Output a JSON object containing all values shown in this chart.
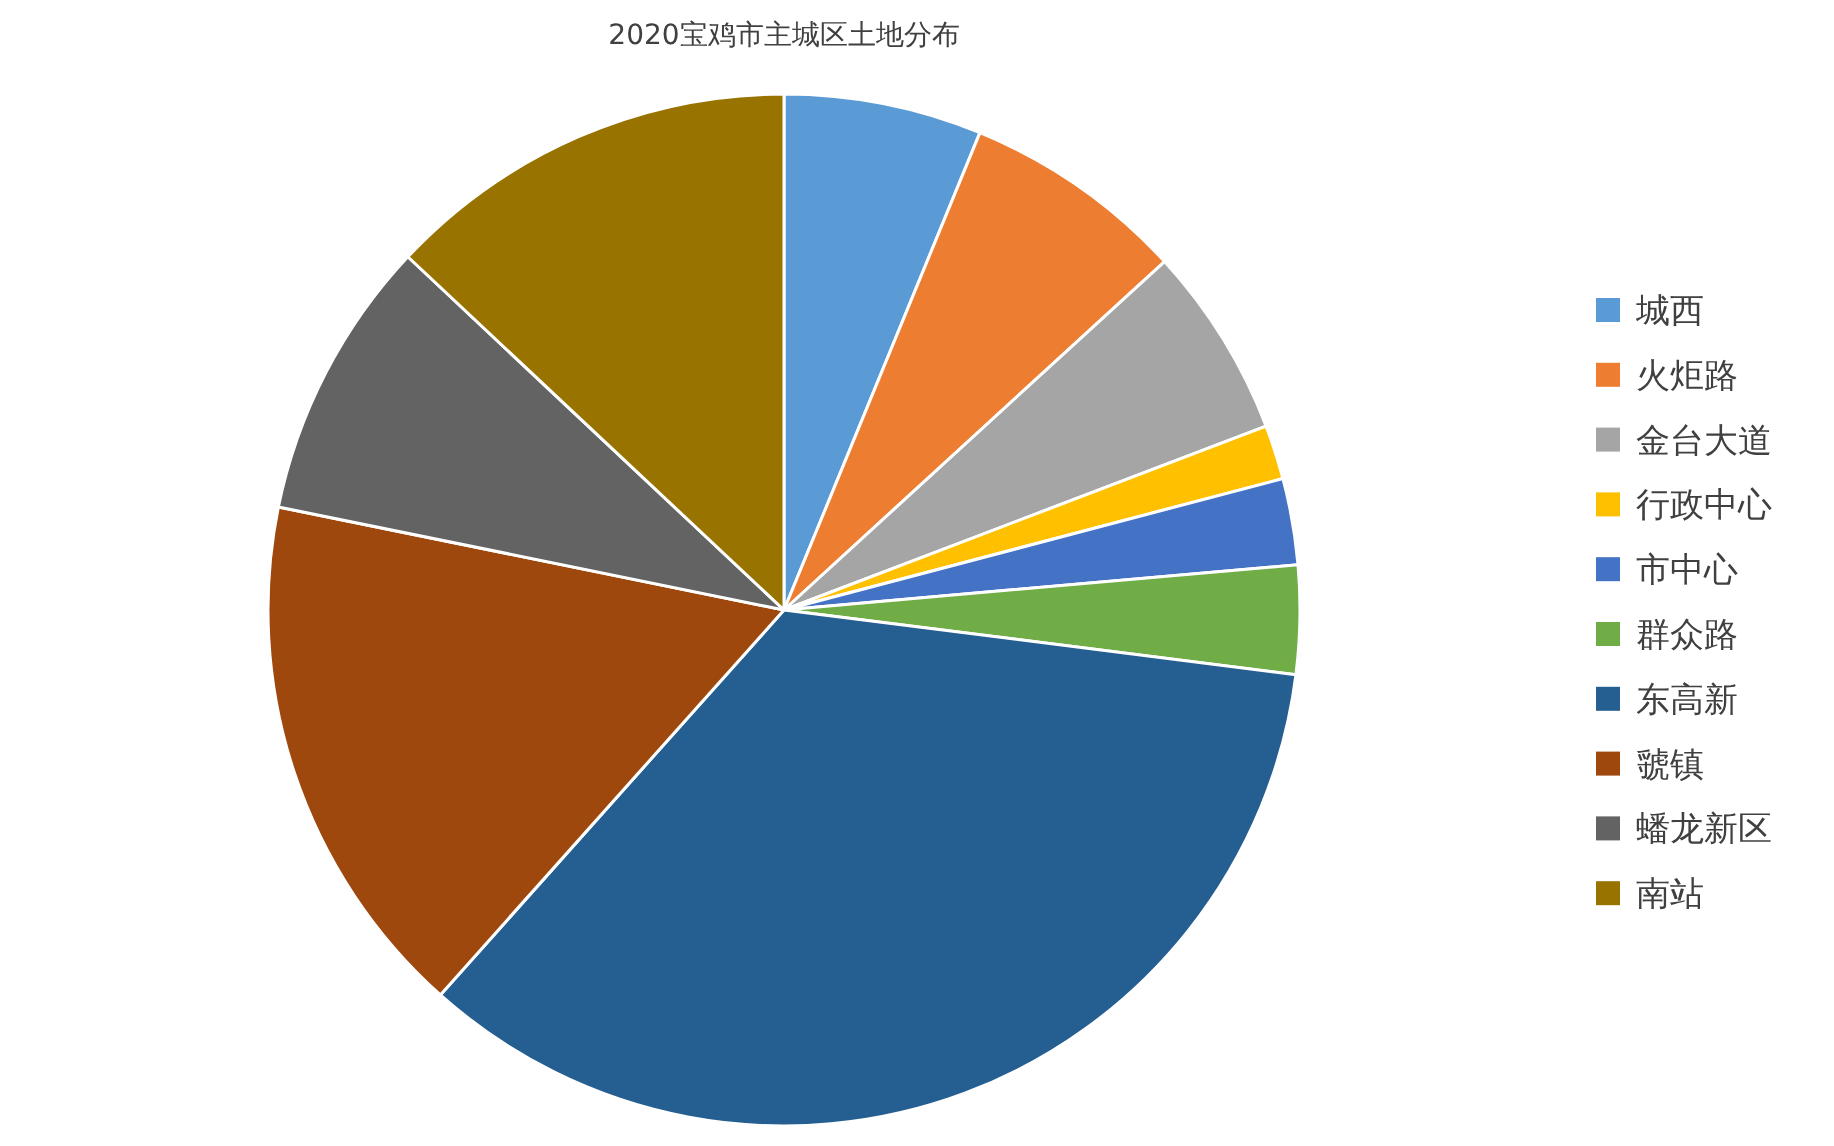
{
  "chart_data": {
    "type": "pie",
    "title": "2020宝鸡市主城区土地分布",
    "categories": [
      "城西",
      "火炬路",
      "金台大道",
      "行政中心",
      "市中心",
      "群众路",
      "东高新",
      "虢镇",
      "蟠龙新区",
      "南站"
    ],
    "values": [
      6.2,
      7.0,
      6.0,
      1.7,
      2.7,
      3.4,
      34.6,
      16.6,
      8.8,
      13.0
    ],
    "colors": [
      "#5b9bd5",
      "#ed7d31",
      "#a5a5a5",
      "#ffc000",
      "#4472c4",
      "#70ad47",
      "#255e91",
      "#9e480e",
      "#636363",
      "#997300"
    ],
    "legend": "right"
  }
}
